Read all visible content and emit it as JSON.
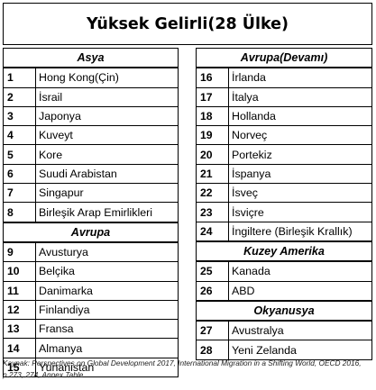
{
  "title": "Yüksek Gelirli(28 Ülke)",
  "left_column": [
    {
      "type": "header",
      "label": "Asya"
    },
    {
      "type": "row",
      "num": "1",
      "name": "Hong Kong(Çin)"
    },
    {
      "type": "row",
      "num": "2",
      "name": "İsrail"
    },
    {
      "type": "row",
      "num": "3",
      "name": "Japonya"
    },
    {
      "type": "row",
      "num": "4",
      "name": "Kuveyt"
    },
    {
      "type": "row",
      "num": "5",
      "name": "Kore"
    },
    {
      "type": "row",
      "num": "6",
      "name": "Suudi Arabistan"
    },
    {
      "type": "row",
      "num": "7",
      "name": "Singapur"
    },
    {
      "type": "row",
      "num": "8",
      "name": "Birleşik Arap Emirlikleri"
    },
    {
      "type": "header",
      "label": "Avrupa"
    },
    {
      "type": "row",
      "num": "9",
      "name": "Avusturya"
    },
    {
      "type": "row",
      "num": "10",
      "name": "Belçika"
    },
    {
      "type": "row",
      "num": "11",
      "name": "Danimarka"
    },
    {
      "type": "row",
      "num": "12",
      "name": "Finlandiya"
    },
    {
      "type": "row",
      "num": "13",
      "name": "Fransa"
    },
    {
      "type": "row",
      "num": "14",
      "name": "Almanya"
    },
    {
      "type": "row",
      "num": "15",
      "name": "Yunanistan"
    }
  ],
  "right_column": [
    {
      "type": "header",
      "label": "Avrupa(Devamı)"
    },
    {
      "type": "row",
      "num": "16",
      "name": "İrlanda"
    },
    {
      "type": "row",
      "num": "17",
      "name": "İtalya"
    },
    {
      "type": "row",
      "num": "18",
      "name": "Hollanda"
    },
    {
      "type": "row",
      "num": "19",
      "name": "Norveç"
    },
    {
      "type": "row",
      "num": "20",
      "name": "Portekiz"
    },
    {
      "type": "row",
      "num": "21",
      "name": "İspanya"
    },
    {
      "type": "row",
      "num": "22",
      "name": "İsveç"
    },
    {
      "type": "row",
      "num": "23",
      "name": "İsviçre"
    },
    {
      "type": "row",
      "num": "24",
      "name": "İngiltere (Birleşik Krallık)"
    },
    {
      "type": "header",
      "label": "Kuzey Amerika"
    },
    {
      "type": "row",
      "num": "25",
      "name": "Kanada"
    },
    {
      "type": "row",
      "num": "26",
      "name": "ABD"
    },
    {
      "type": "header",
      "label": "Okyanusya"
    },
    {
      "type": "row",
      "num": "27",
      "name": "Avustralya"
    },
    {
      "type": "row",
      "num": "28",
      "name": "Yeni Zelanda"
    },
    {
      "type": "empty"
    }
  ],
  "source": "Kaynak: Perspectives on Global Development 2017, International Migration in a Shifting World, OECD 2016, p.273, 274, Annex Table"
}
